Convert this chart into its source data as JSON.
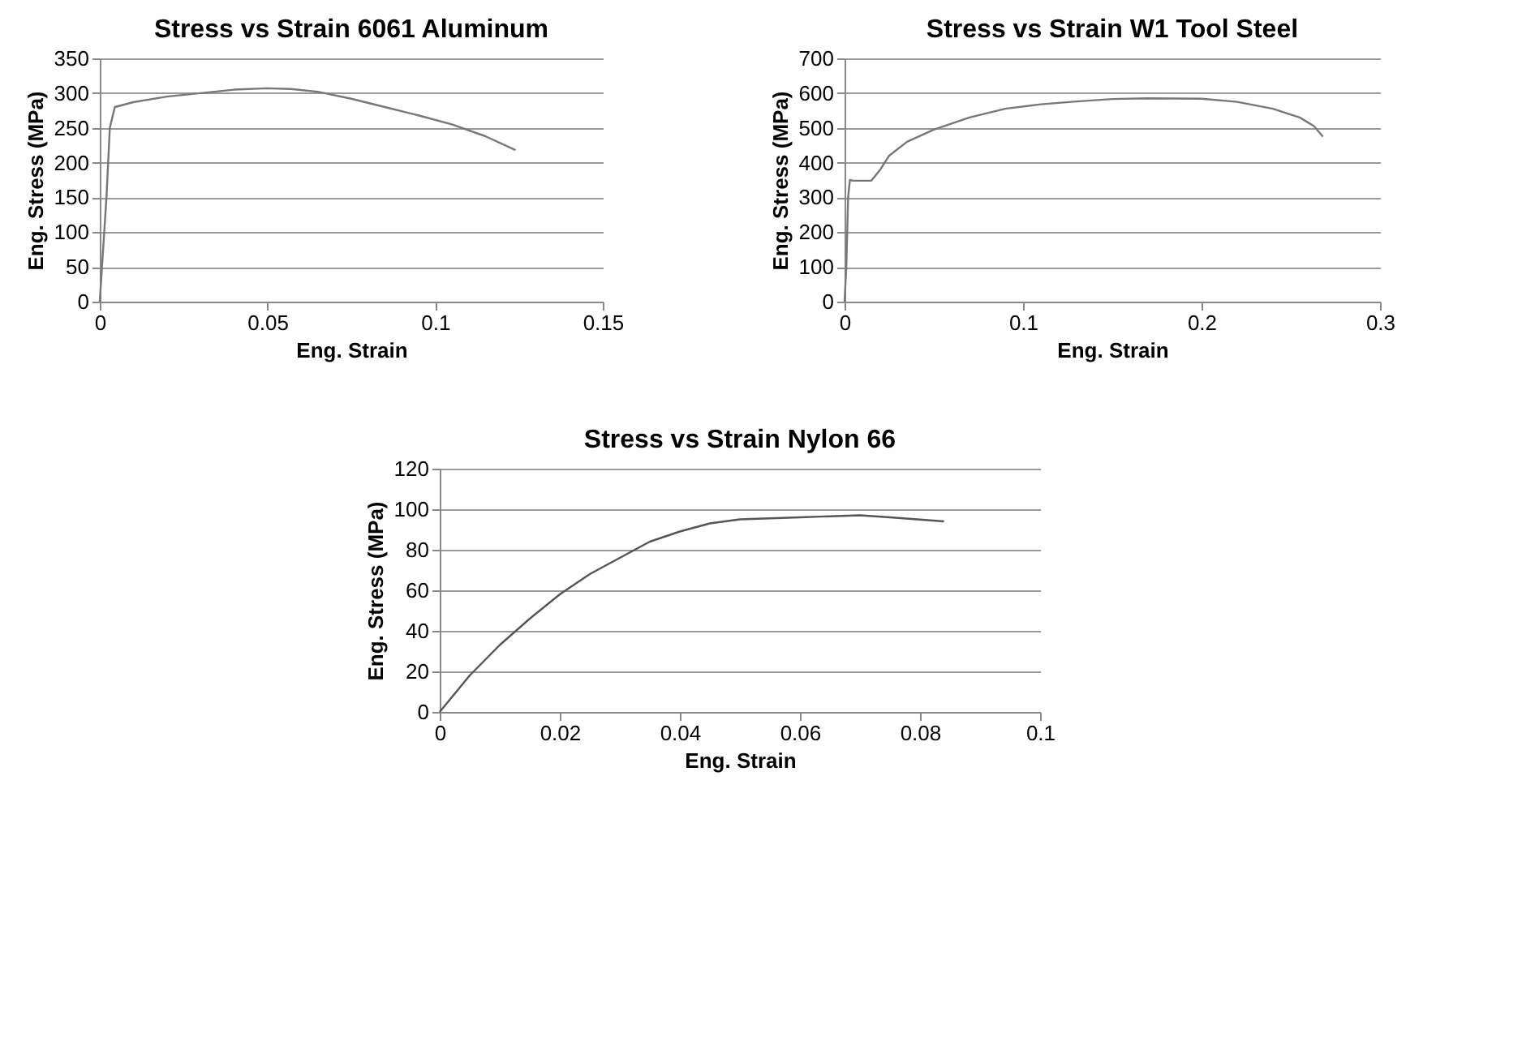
{
  "chart_data": [
    {
      "type": "line",
      "title": "Stress vs Strain 6061 Aluminum",
      "xlabel": "Eng. Strain",
      "ylabel": "Eng. Stress (MPa)",
      "xlim": [
        0,
        0.15
      ],
      "xticks": [
        0,
        0.05,
        0.1,
        0.15
      ],
      "ylim": [
        0,
        350
      ],
      "yticks": [
        0,
        50,
        100,
        150,
        200,
        250,
        300,
        350
      ],
      "grid": "y",
      "marker": "none",
      "line_style": "solid",
      "series": [
        {
          "color": "#777777",
          "x": [
            0,
            0.002,
            0.003,
            0.0045,
            0.01,
            0.02,
            0.03,
            0.04,
            0.05,
            0.057,
            0.065,
            0.075,
            0.085,
            0.095,
            0.105,
            0.115,
            0.124
          ],
          "values": [
            0,
            150,
            250,
            280,
            287,
            295,
            300,
            305,
            307,
            306,
            302,
            292,
            280,
            268,
            255,
            238,
            218
          ]
        }
      ]
    },
    {
      "type": "line",
      "title": "Stress vs Strain W1 Tool Steel",
      "xlabel": "Eng. Strain",
      "ylabel": "Eng. Stress (MPa)",
      "xlim": [
        0,
        0.3
      ],
      "xticks": [
        0,
        0.1,
        0.2,
        0.3
      ],
      "ylim": [
        0,
        700
      ],
      "yticks": [
        0,
        100,
        200,
        300,
        400,
        500,
        600,
        700
      ],
      "grid": "y",
      "marker": "none",
      "line_style": "solid",
      "series": [
        {
          "color": "#777777",
          "x": [
            0,
            0.001,
            0.002,
            0.003,
            0.005,
            0.015,
            0.02,
            0.025,
            0.035,
            0.05,
            0.07,
            0.09,
            0.11,
            0.13,
            0.15,
            0.17,
            0.2,
            0.22,
            0.24,
            0.255,
            0.263,
            0.268
          ],
          "values": [
            0,
            100,
            300,
            350,
            348,
            348,
            380,
            420,
            460,
            495,
            530,
            555,
            568,
            576,
            583,
            585,
            584,
            575,
            555,
            530,
            505,
            475
          ]
        }
      ]
    },
    {
      "type": "line",
      "title": "Stress vs Strain Nylon 66",
      "xlabel": "Eng. Strain",
      "ylabel": "Eng. Stress (MPa)",
      "xlim": [
        0,
        0.1
      ],
      "xticks": [
        0,
        0.02,
        0.04,
        0.06,
        0.08,
        0.1
      ],
      "ylim": [
        0,
        120
      ],
      "yticks": [
        0,
        20,
        40,
        60,
        80,
        100,
        120
      ],
      "grid": "y",
      "marker": "none",
      "line_style": "solid",
      "series": [
        {
          "color": "#555555",
          "x": [
            0,
            0.005,
            0.01,
            0.015,
            0.02,
            0.025,
            0.03,
            0.035,
            0.04,
            0.045,
            0.05,
            0.06,
            0.07,
            0.075,
            0.084
          ],
          "values": [
            0,
            18,
            33,
            46,
            58,
            68,
            76,
            84,
            89,
            93,
            95,
            96,
            97,
            96,
            94
          ]
        }
      ]
    }
  ]
}
